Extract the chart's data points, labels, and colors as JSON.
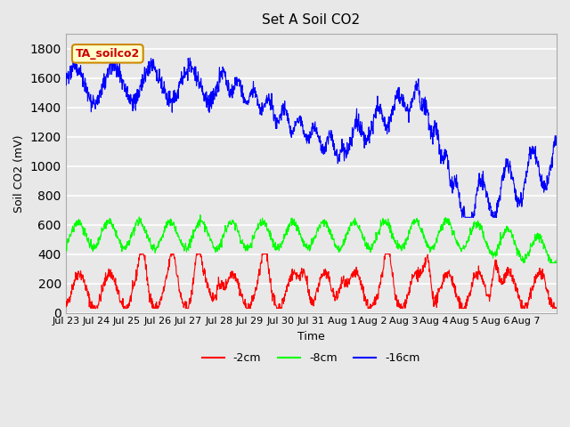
{
  "title": "Set A Soil CO2",
  "ylabel": "Soil CO2 (mV)",
  "xlabel": "Time",
  "tag_label": "TA_soilco2",
  "ylim": [
    0,
    1900
  ],
  "yticks": [
    0,
    200,
    400,
    600,
    800,
    1000,
    1200,
    1400,
    1600,
    1800
  ],
  "line_colors": [
    "red",
    "lime",
    "blue"
  ],
  "line_labels": [
    "-2cm",
    "-8cm",
    "-16cm"
  ],
  "xtick_labels": [
    "Jul 23",
    "Jul 24",
    "Jul 25",
    "Jul 26",
    "Jul 27",
    "Jul 28",
    "Jul 29",
    "Jul 30",
    "Jul 31",
    "Aug 1",
    "Aug 2",
    "Aug 3",
    "Aug 4",
    "Aug 5",
    "Aug 6",
    "Aug 7"
  ],
  "background_color": "#e8e8e8",
  "plot_bg_color": "#e8e8e8",
  "grid_color": "#ffffff",
  "tag_bg_color": "#ffffcc",
  "tag_border_color": "#cc8800",
  "tag_text_color": "#cc0000"
}
